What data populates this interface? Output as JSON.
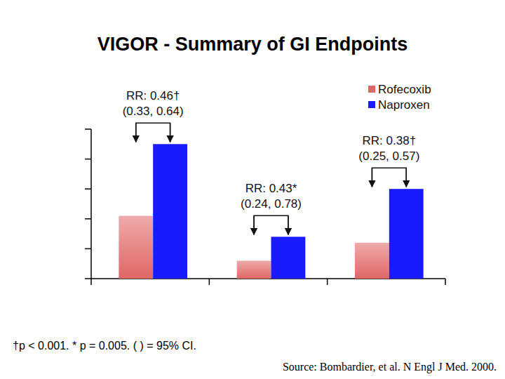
{
  "chart_data": {
    "type": "bar",
    "title": "VIGOR - Summary of GI Endpoints",
    "categories": [
      null,
      null,
      null
    ],
    "series": [
      {
        "name": "Rofecoxib",
        "color": "#e06666",
        "values": [
          2.1,
          0.6,
          1.2
        ]
      },
      {
        "name": "Naproxen",
        "color": "#1a1aff",
        "values": [
          4.5,
          1.4,
          3.0
        ]
      }
    ],
    "annotations": [
      {
        "text": "RR: 0.46†",
        "ci": "(0.33, 0.64)"
      },
      {
        "text": "RR: 0.43*",
        "ci": "(0.24, 0.78)"
      },
      {
        "text": "RR: 0.38†",
        "ci": "(0.25, 0.57)"
      }
    ],
    "footnote": "†p < 0.001.  * p = 0.005.  ( ) = 95% CI.",
    "source": "Source: Bombardier, et al. N Engl J Med. 2000.",
    "ylim": [
      0,
      5
    ],
    "yticks": [
      0,
      1,
      2,
      3,
      4,
      5
    ],
    "tick_labels": false,
    "grid": false,
    "legend": "top-right"
  }
}
